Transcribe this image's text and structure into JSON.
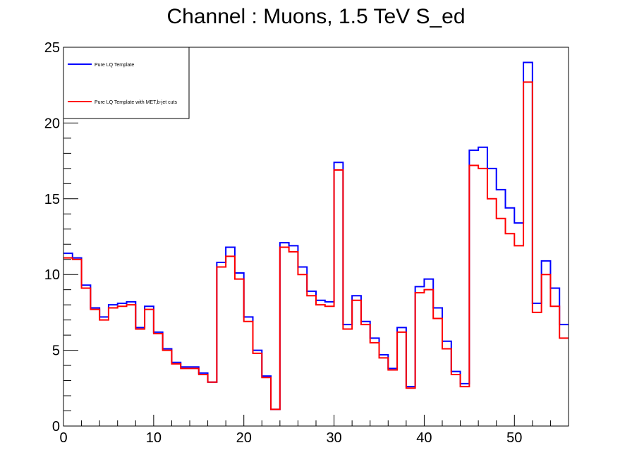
{
  "chart_data": {
    "type": "line",
    "step": true,
    "title": "Channel : Muons, 1.5 TeV S_ed",
    "xlabel": "",
    "ylabel": "",
    "xlim": [
      0,
      56
    ],
    "ylim": [
      0,
      25
    ],
    "bin_width": 1,
    "x_ticks": [
      0,
      10,
      20,
      30,
      40,
      50
    ],
    "y_ticks": [
      0,
      5,
      10,
      15,
      20,
      25
    ],
    "grid": false,
    "legend_position": "top-left",
    "series": [
      {
        "name": "Pure LQ Template",
        "color": "#0000ff",
        "values": [
          11.4,
          11.1,
          9.3,
          7.8,
          7.2,
          8.0,
          8.1,
          8.2,
          6.5,
          7.9,
          6.2,
          5.1,
          4.2,
          3.9,
          3.9,
          3.5,
          2.9,
          10.8,
          11.8,
          10.1,
          7.2,
          5.0,
          3.3,
          1.1,
          12.1,
          11.9,
          10.5,
          8.9,
          8.3,
          8.2,
          17.4,
          6.7,
          8.6,
          6.9,
          5.8,
          4.7,
          3.8,
          6.5,
          2.6,
          9.2,
          9.7,
          7.8,
          5.6,
          3.6,
          2.8,
          18.2,
          18.4,
          17.0,
          15.6,
          14.4,
          13.4,
          24.0,
          8.1,
          10.9,
          9.1,
          6.7
        ]
      },
      {
        "name": "Pure LQ Template with MET,b-jet cuts",
        "color": "#ff0000",
        "values": [
          11.1,
          11.0,
          9.1,
          7.7,
          7.0,
          7.8,
          7.9,
          8.0,
          6.4,
          7.7,
          6.1,
          5.0,
          4.1,
          3.8,
          3.8,
          3.4,
          2.9,
          10.5,
          11.2,
          9.7,
          6.9,
          4.8,
          3.2,
          1.1,
          11.8,
          11.5,
          10.0,
          8.6,
          8.0,
          7.9,
          16.9,
          6.4,
          8.3,
          6.7,
          5.5,
          4.5,
          3.7,
          6.2,
          2.5,
          8.8,
          9.0,
          7.1,
          5.1,
          3.4,
          2.6,
          17.2,
          17.0,
          15.0,
          13.7,
          12.7,
          11.9,
          22.7,
          7.5,
          10.0,
          7.9,
          5.8
        ]
      }
    ]
  }
}
